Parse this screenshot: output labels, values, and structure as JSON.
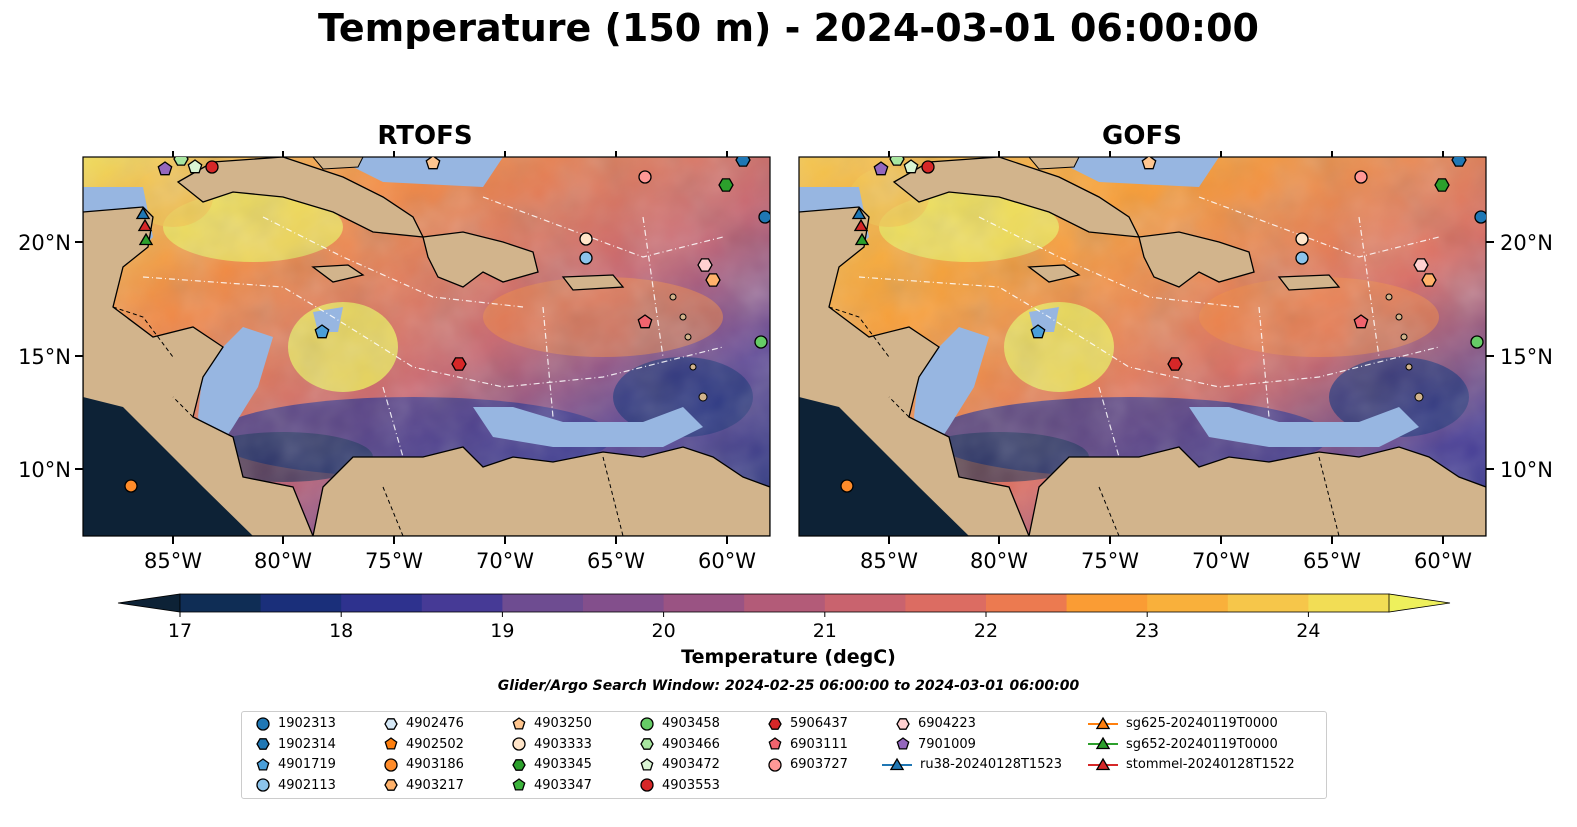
{
  "title": "Temperature (150 m) - 2024-03-01 06:00:00",
  "panels": [
    {
      "name": "RTOFS"
    },
    {
      "name": "GOFS"
    }
  ],
  "axes": {
    "lon_ticks": [
      "85°W",
      "80°W",
      "75°W",
      "70°W",
      "65°W",
      "60°W"
    ],
    "lat_ticks": [
      "20°N",
      "15°N",
      "10°N"
    ]
  },
  "colorbar": {
    "label": "Temperature (degC)",
    "ticks": [
      "17",
      "18",
      "19",
      "20",
      "21",
      "22",
      "23",
      "24"
    ],
    "range": [
      16.75,
      24.25
    ],
    "colors": [
      "#0d2236",
      "#0f2d55",
      "#1a2f7a",
      "#2e328e",
      "#463a96",
      "#5c4496",
      "#6e4c91",
      "#834f8c",
      "#9a5383",
      "#b35b78",
      "#c9636e",
      "#dc6c62",
      "#ec7a50",
      "#f68b3f",
      "#fa9c34",
      "#f9b03b",
      "#f6c64a",
      "#f2dd55",
      "#eef05c"
    ]
  },
  "search_window": "Glider/Argo Search Window: 2024-02-25 06:00:00 to 2024-03-01 06:00:00",
  "legend": [
    {
      "label": "1902313",
      "marker": "circle",
      "color": "#1f77b4"
    },
    {
      "label": "1902314",
      "marker": "hexagon",
      "color": "#1f77b4"
    },
    {
      "label": "4901719",
      "marker": "pentagon",
      "color": "#4a9fd9"
    },
    {
      "label": "4902113",
      "marker": "circle",
      "color": "#8cc4ec"
    },
    {
      "label": "4902476",
      "marker": "hexagon",
      "color": "#d6e9f7"
    },
    {
      "label": "4902502",
      "marker": "pentagon",
      "color": "#ff7f0e"
    },
    {
      "label": "4903186",
      "marker": "circle",
      "color": "#ff8c2a"
    },
    {
      "label": "4903217",
      "marker": "hexagon",
      "color": "#ffb26b"
    },
    {
      "label": "4903250",
      "marker": "pentagon",
      "color": "#ffc68f"
    },
    {
      "label": "4903333",
      "marker": "circle",
      "color": "#ffe5c9"
    },
    {
      "label": "4903345",
      "marker": "hexagon",
      "color": "#2ca02c"
    },
    {
      "label": "4903347",
      "marker": "pentagon",
      "color": "#3cb43c"
    },
    {
      "label": "4903458",
      "marker": "circle",
      "color": "#66cc66"
    },
    {
      "label": "4903466",
      "marker": "hexagon",
      "color": "#a8e6a0"
    },
    {
      "label": "4903472",
      "marker": "pentagon",
      "color": "#daf5d4"
    },
    {
      "label": "4903553",
      "marker": "circle",
      "color": "#d62728"
    },
    {
      "label": "5906437",
      "marker": "hexagon",
      "color": "#d62728"
    },
    {
      "label": "6903111",
      "marker": "pentagon",
      "color": "#f0646e"
    },
    {
      "label": "6903727",
      "marker": "circle",
      "color": "#ff9896"
    },
    {
      "label": "6904223",
      "marker": "hexagon",
      "color": "#ffd0d0"
    },
    {
      "label": "7901009",
      "marker": "pentagon",
      "color": "#9467bd"
    },
    {
      "label": "ru38-20240128T1523",
      "marker": "triangle-line",
      "color": "#1f77b4"
    },
    {
      "label": "sg625-20240119T0000",
      "marker": "triangle-line",
      "color": "#ff7f0e"
    },
    {
      "label": "sg652-20240119T0000",
      "marker": "triangle-line",
      "color": "#2ca02c"
    },
    {
      "label": "stommel-20240128T1522",
      "marker": "triangle-line",
      "color": "#d62728"
    }
  ],
  "colors": {
    "land": "#d2b48c",
    "shallow": "#97b6e1",
    "coast": "#000000"
  }
}
